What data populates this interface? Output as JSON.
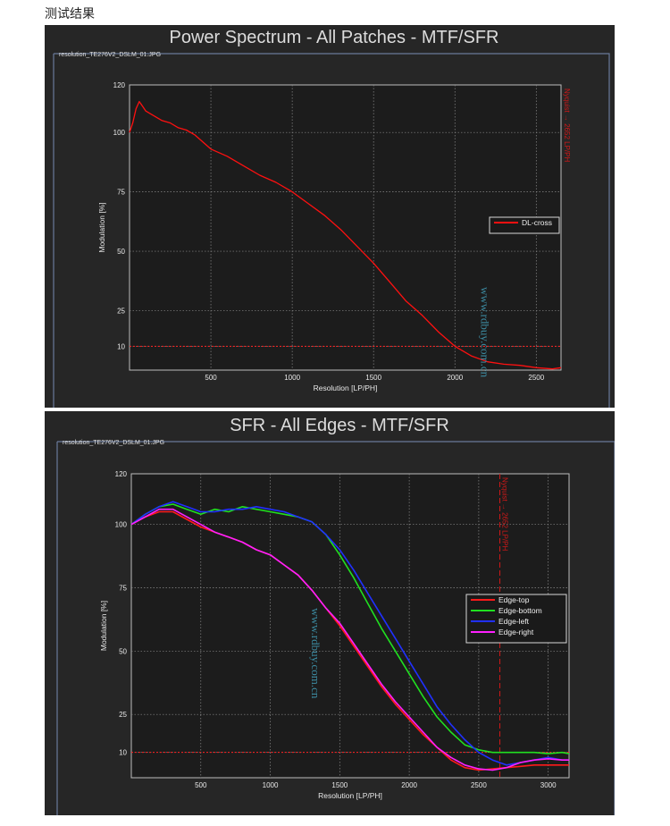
{
  "heading": "测试结果",
  "watermark": "www.rdbuy.com.cn",
  "colors": {
    "background": "#262626",
    "axes_bg": "#1c1c1c",
    "grid": "#8a8a8a",
    "threshold": "#ff2020",
    "nyquist": "#d01818"
  },
  "chart_data": [
    {
      "type": "line",
      "title": "Power Spectrum - All Patches - MTF/SFR",
      "file_label": "resolution_TE276V2_DSLM_01.JPG",
      "xlabel": "Resolution [LP/PH]",
      "ylabel": "Modulation [%]",
      "xlim": [
        0,
        2652
      ],
      "ylim": [
        0,
        120
      ],
      "xticks": [
        500,
        1000,
        1500,
        2000,
        2500
      ],
      "yticks": [
        10,
        25,
        50,
        75,
        100,
        120
      ],
      "grid": true,
      "threshold": 10,
      "nyquist_label": "Nyquist → 2652 LP/PH",
      "legend_position": "right",
      "series": [
        {
          "name": "DL-cross",
          "color": "#ff1010",
          "x": [
            0,
            20,
            40,
            60,
            80,
            100,
            150,
            200,
            250,
            300,
            350,
            400,
            500,
            600,
            700,
            800,
            900,
            1000,
            1100,
            1200,
            1300,
            1400,
            1500,
            1600,
            1700,
            1800,
            1900,
            2000,
            2100,
            2200,
            2300,
            2400,
            2500,
            2600,
            2652
          ],
          "y": [
            100,
            104,
            110,
            113,
            111,
            109,
            107,
            105,
            104,
            102,
            101,
            99,
            93,
            90,
            86,
            82,
            79,
            75,
            70,
            65,
            59,
            52,
            45,
            37,
            29,
            23,
            16,
            10,
            6,
            3.5,
            2.5,
            2,
            1,
            0.5,
            1
          ]
        }
      ]
    },
    {
      "type": "line",
      "title": "SFR - All Edges - MTF/SFR",
      "file_label": "resolution_TE276V2_DSLM_01.JPG",
      "xlabel": "Resolution [LP/PH]",
      "ylabel": "Modulation [%]",
      "xlim": [
        0,
        3150
      ],
      "ylim": [
        0,
        120
      ],
      "xticks": [
        500,
        1000,
        1500,
        2000,
        2500,
        3000
      ],
      "yticks": [
        10,
        25,
        50,
        75,
        100,
        120
      ],
      "grid": true,
      "threshold": 10,
      "nyquist_x": 2652,
      "nyquist_label": "Nyquist → 2652 LP/PH",
      "legend_position": "right",
      "series": [
        {
          "name": "Edge-top",
          "color": "#ff1a1a",
          "x": [
            0,
            100,
            200,
            300,
            400,
            500,
            600,
            700,
            800,
            900,
            1000,
            1100,
            1200,
            1300,
            1400,
            1500,
            1600,
            1700,
            1800,
            1900,
            2000,
            2100,
            2200,
            2300,
            2400,
            2500,
            2600,
            2700,
            2800,
            2900,
            3000,
            3100,
            3150
          ],
          "y": [
            100,
            103,
            105,
            105,
            102,
            99,
            97,
            95,
            93,
            90,
            88,
            84,
            80,
            74,
            67,
            60,
            52,
            44,
            36,
            29,
            23,
            17,
            12,
            7,
            4,
            3,
            3.5,
            4,
            4.5,
            5,
            5,
            5,
            5
          ]
        },
        {
          "name": "Edge-bottom",
          "color": "#20e020",
          "x": [
            0,
            100,
            200,
            300,
            400,
            500,
            600,
            700,
            800,
            900,
            1000,
            1100,
            1200,
            1300,
            1400,
            1500,
            1600,
            1700,
            1800,
            1900,
            2000,
            2100,
            2200,
            2300,
            2400,
            2500,
            2600,
            2700,
            2800,
            2900,
            3000,
            3100,
            3150
          ],
          "y": [
            100,
            104,
            107,
            108,
            106,
            104,
            106,
            105,
            107,
            106,
            105,
            104,
            103,
            101,
            96,
            88,
            79,
            69,
            59,
            50,
            41,
            32,
            24,
            18,
            13,
            11,
            10,
            10,
            10,
            10,
            9.5,
            10,
            9.5
          ]
        },
        {
          "name": "Edge-left",
          "color": "#2030ff",
          "x": [
            0,
            100,
            200,
            300,
            400,
            500,
            600,
            700,
            800,
            900,
            1000,
            1100,
            1200,
            1300,
            1400,
            1500,
            1600,
            1700,
            1800,
            1900,
            2000,
            2100,
            2200,
            2300,
            2400,
            2500,
            2600,
            2700,
            2800,
            2900,
            3000,
            3100,
            3150
          ],
          "y": [
            100,
            104,
            107,
            109,
            107,
            105,
            105,
            106,
            106,
            107,
            106,
            105,
            103,
            101,
            96,
            90,
            82,
            73,
            64,
            55,
            46,
            37,
            28,
            21,
            15,
            10,
            7,
            5,
            6,
            7,
            8,
            7,
            7
          ]
        },
        {
          "name": "Edge-right",
          "color": "#ff20ff",
          "x": [
            0,
            100,
            200,
            300,
            400,
            500,
            600,
            700,
            800,
            900,
            1000,
            1100,
            1200,
            1300,
            1400,
            1500,
            1600,
            1700,
            1800,
            1900,
            2000,
            2100,
            2200,
            2300,
            2400,
            2500,
            2600,
            2700,
            2800,
            2900,
            3000,
            3100,
            3150
          ],
          "y": [
            100,
            103,
            106,
            106,
            103,
            100,
            97,
            95,
            93,
            90,
            88,
            84,
            80,
            74,
            67,
            61,
            53,
            45,
            37,
            30,
            24,
            18,
            12,
            8,
            5,
            3.5,
            3,
            4,
            6,
            7,
            7.5,
            7,
            7
          ]
        }
      ]
    }
  ]
}
